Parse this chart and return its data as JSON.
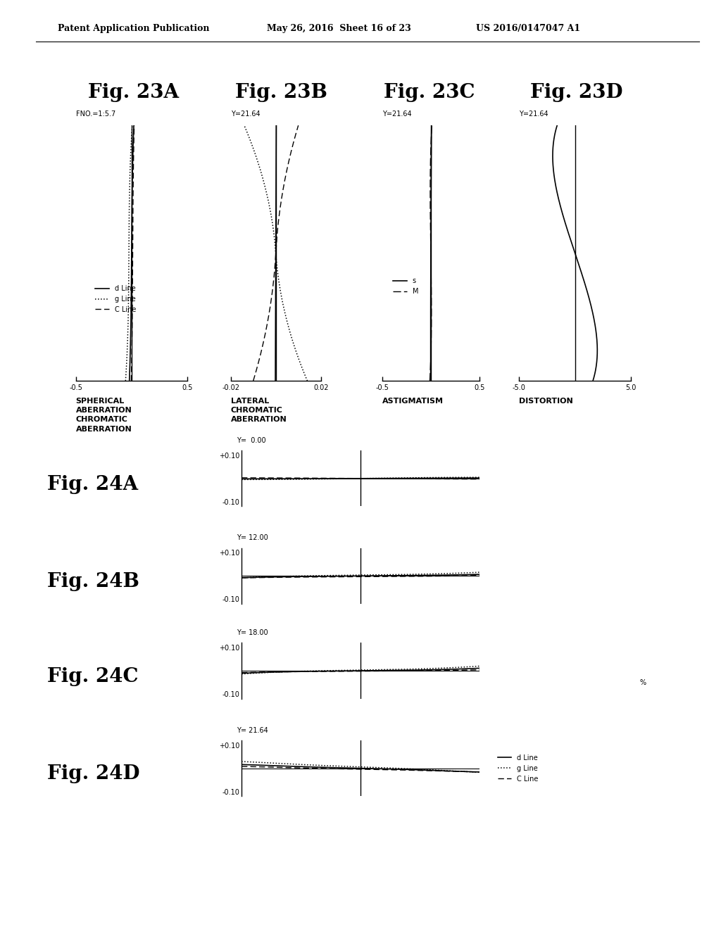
{
  "header_left": "Patent Application Publication",
  "header_mid": "May 26, 2016  Sheet 16 of 23",
  "header_right": "US 2016/0147047 A1",
  "fig23A_label": "Fig. 23A",
  "fig23B_label": "Fig. 23B",
  "fig23C_label": "Fig. 23C",
  "fig23D_label": "Fig. 23D",
  "fig24A_label": "Fig. 24A",
  "fig24B_label": "Fig. 24B",
  "fig24C_label": "Fig. 24C",
  "fig24D_label": "Fig. 24D",
  "fno_label": "FNO.=1:5.7",
  "y_label_23": "Y=21.64",
  "y_label_24A": "Y=  0.00",
  "y_label_24B": "Y= 12.00",
  "y_label_24C": "Y= 18.00",
  "y_label_24D": "Y= 21.64",
  "label_sa": "SPHERICAL\nABERRATION\nCHROMATIC\nABERRATION",
  "label_lca": "LATERAL\nCHROMATIC\nABERRATION",
  "label_astig": "ASTIGMATISM",
  "label_dist": "DISTORTION",
  "bg_color": "#ffffff"
}
